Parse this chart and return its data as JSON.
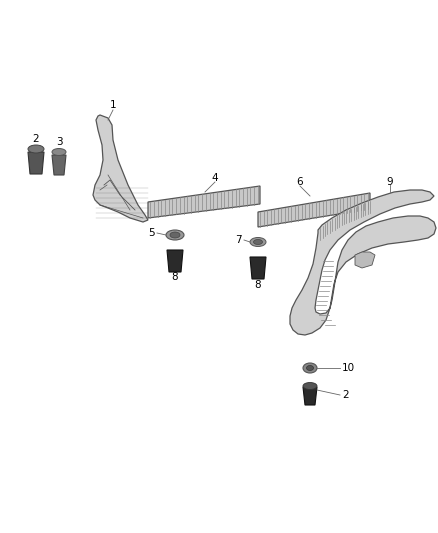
{
  "bg_color": "#ffffff",
  "lc": "#555555",
  "part_fill": "#d0d0d0",
  "part_fill_dark": "#aaaaaa",
  "clip_fill": "#888888",
  "bolt_fill": "#2a2a2a",
  "bolt_head_fill": "#666666",
  "label_fontsize": 7.5
}
